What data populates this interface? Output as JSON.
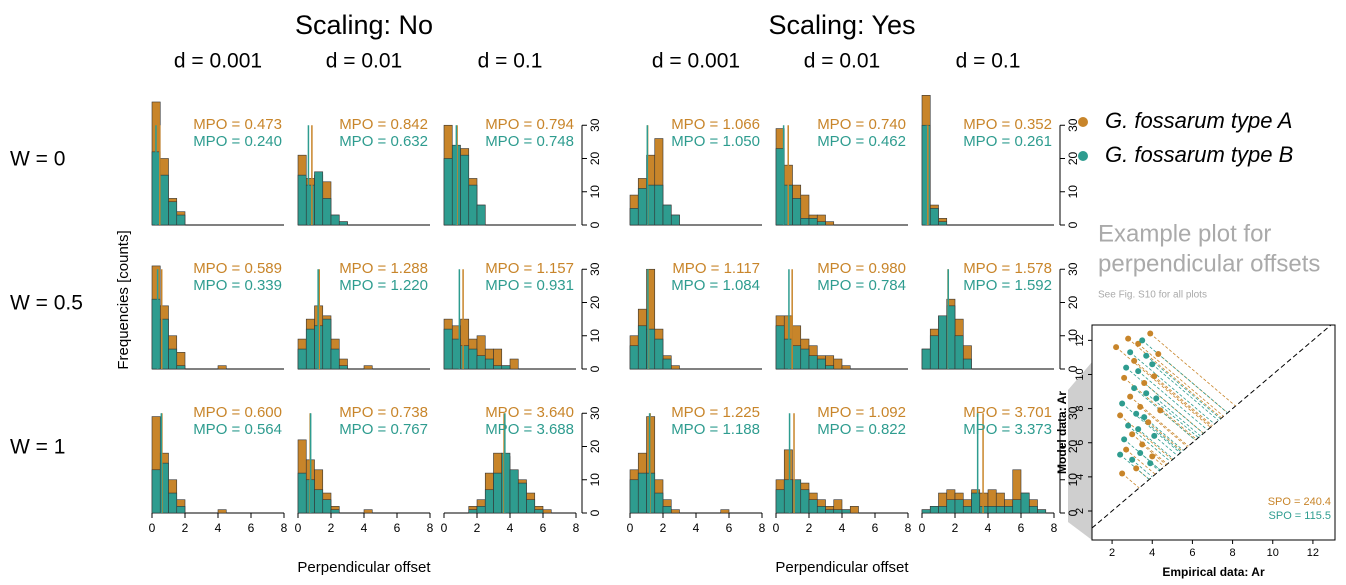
{
  "figure": {
    "groups": [
      {
        "title": "Scaling: No",
        "columns": [
          "d = 0.001",
          "d = 0.01",
          "d = 0.1"
        ],
        "xlabel": "Perpendicular offset"
      },
      {
        "title": "Scaling: Yes",
        "columns": [
          "d = 0.001",
          "d = 0.01",
          "d = 0.1"
        ],
        "xlabel": "Perpendicular offset"
      }
    ],
    "rows": [
      "W = 0",
      "W = 0.5",
      "W = 1"
    ],
    "ylabel": "Frequencies [counts]",
    "legend": [
      {
        "label": "G. fossarum type A",
        "color": "#c8852a"
      },
      {
        "label": "G. fossarum type B",
        "color": "#2e9c8f"
      }
    ],
    "example": {
      "title_lines": [
        "Example plot for",
        "perpendicular offsets"
      ],
      "note": "See Fig. S10 for all plots"
    }
  },
  "chart_data": [
    {
      "type": "histogram",
      "bins": [
        0,
        0.5,
        1,
        1.5,
        2
      ],
      "xlim": [
        0,
        8
      ],
      "ylim": [
        0,
        40
      ],
      "series": [
        {
          "values": [
            37,
            20,
            8,
            4
          ],
          "mpo": 0.473,
          "mpo_label": "MPO = 0.473"
        },
        {
          "values": [
            22,
            15,
            7,
            3
          ],
          "mpo": 0.24,
          "mpo_label": "MPO = 0.240"
        }
      ]
    },
    {
      "type": "histogram",
      "bins": [
        0,
        0.5,
        1,
        1.5,
        2,
        2.5,
        3
      ],
      "xlim": [
        0,
        8
      ],
      "ylim": [
        0,
        40
      ],
      "series": [
        {
          "values": [
            21,
            14,
            15,
            13,
            3,
            1
          ],
          "mpo": 0.842,
          "mpo_label": "MPO = 0.842"
        },
        {
          "values": [
            15,
            12,
            16,
            8,
            3,
            1
          ],
          "mpo": 0.632,
          "mpo_label": "MPO = 0.632"
        }
      ]
    },
    {
      "type": "histogram",
      "bins": [
        0,
        0.5,
        1,
        1.5,
        2,
        2.5
      ],
      "xlim": [
        0,
        8
      ],
      "ylim": [
        0,
        40
      ],
      "yticks": [
        0,
        10,
        20,
        30
      ],
      "series": [
        {
          "values": [
            30,
            22,
            23,
            14,
            6
          ],
          "mpo": 0.794,
          "mpo_label": "MPO = 0.794"
        },
        {
          "values": [
            20,
            24,
            21,
            12,
            6
          ],
          "mpo": 0.748,
          "mpo_label": "MPO = 0.748"
        }
      ]
    },
    {
      "type": "histogram",
      "bins": [
        0,
        0.5,
        1,
        1.5,
        2,
        2.5,
        3
      ],
      "xlim": [
        0,
        8
      ],
      "ylim": [
        0,
        40
      ],
      "series": [
        {
          "values": [
            9,
            14,
            21,
            26,
            6,
            3
          ],
          "mpo": 1.066,
          "mpo_label": "MPO = 1.066"
        },
        {
          "values": [
            5,
            11,
            12,
            12,
            6,
            3
          ],
          "mpo": 1.05,
          "mpo_label": "MPO = 1.050"
        }
      ]
    },
    {
      "type": "histogram",
      "bins": [
        0,
        0.5,
        1,
        1.5,
        2,
        2.5,
        3,
        3.5
      ],
      "xlim": [
        0,
        8
      ],
      "ylim": [
        0,
        40
      ],
      "series": [
        {
          "values": [
            29,
            18,
            12,
            9,
            3,
            3,
            1
          ],
          "mpo": 0.74,
          "mpo_label": "MPO = 0.740"
        },
        {
          "values": [
            23,
            12,
            8,
            2,
            2,
            1,
            0
          ],
          "mpo": 0.462,
          "mpo_label": "MPO = 0.462"
        }
      ]
    },
    {
      "type": "histogram",
      "bins": [
        0,
        0.5,
        1,
        1.5
      ],
      "xlim": [
        0,
        8
      ],
      "ylim": [
        0,
        40
      ],
      "yticks": [
        0,
        10,
        20,
        30
      ],
      "series": [
        {
          "values": [
            39,
            6,
            2
          ],
          "mpo": 0.352,
          "mpo_label": "MPO = 0.352"
        },
        {
          "values": [
            30,
            5,
            1
          ],
          "mpo": 0.261,
          "mpo_label": "MPO = 0.261"
        }
      ]
    },
    {
      "type": "histogram",
      "bins": [
        0,
        0.5,
        1,
        1.5,
        2,
        2.5,
        3,
        3.5,
        4,
        4.5
      ],
      "xlim": [
        0,
        8
      ],
      "ylim": [
        0,
        40
      ],
      "series": [
        {
          "values": [
            31,
            19,
            10,
            5,
            0,
            0,
            0,
            0,
            1
          ],
          "mpo": 0.589,
          "mpo_label": "MPO = 0.589"
        },
        {
          "values": [
            21,
            15,
            6,
            1,
            0,
            0,
            0,
            0,
            0
          ],
          "mpo": 0.339,
          "mpo_label": "MPO = 0.339"
        }
      ]
    },
    {
      "type": "histogram",
      "bins": [
        0,
        0.5,
        1,
        1.5,
        2,
        2.5,
        3,
        3.5,
        4,
        4.5
      ],
      "xlim": [
        0,
        8
      ],
      "ylim": [
        0,
        40
      ],
      "series": [
        {
          "values": [
            9,
            15,
            19,
            16,
            9,
            3,
            0,
            0,
            1
          ],
          "mpo": 1.288,
          "mpo_label": "MPO = 1.288"
        },
        {
          "values": [
            6,
            12,
            13,
            15,
            6,
            1,
            0,
            0,
            0
          ],
          "mpo": 1.22,
          "mpo_label": "MPO = 1.220"
        }
      ]
    },
    {
      "type": "histogram",
      "bins": [
        0,
        0.5,
        1,
        1.5,
        2,
        2.5,
        3,
        3.5,
        4,
        4.5
      ],
      "xlim": [
        0,
        8
      ],
      "ylim": [
        0,
        40
      ],
      "yticks": [
        0,
        10,
        20,
        30
      ],
      "series": [
        {
          "values": [
            15,
            13,
            15,
            9,
            10,
            6,
            6,
            1,
            3
          ],
          "mpo": 1.157,
          "mpo_label": "MPO = 1.157"
        },
        {
          "values": [
            12,
            9,
            7,
            6,
            4,
            3,
            1,
            1,
            0
          ],
          "mpo": 0.931,
          "mpo_label": "MPO = 0.931"
        }
      ]
    },
    {
      "type": "histogram",
      "bins": [
        0,
        0.5,
        1,
        1.5,
        2,
        2.5,
        3
      ],
      "xlim": [
        0,
        8
      ],
      "ylim": [
        0,
        40
      ],
      "series": [
        {
          "values": [
            10,
            18,
            30,
            12,
            4,
            1
          ],
          "mpo": 1.117,
          "mpo_label": "MPO = 1.117"
        },
        {
          "values": [
            7,
            13,
            12,
            9,
            3,
            0
          ],
          "mpo": 1.084,
          "mpo_label": "MPO = 1.084"
        }
      ]
    },
    {
      "type": "histogram",
      "bins": [
        0,
        0.5,
        1,
        1.5,
        2,
        2.5,
        3,
        3.5,
        4,
        4.5
      ],
      "xlim": [
        0,
        8
      ],
      "ylim": [
        0,
        40
      ],
      "series": [
        {
          "values": [
            16,
            16,
            13,
            9,
            7,
            4,
            4,
            3,
            1
          ],
          "mpo": 0.98,
          "mpo_label": "MPO = 0.980"
        },
        {
          "values": [
            13,
            9,
            7,
            6,
            4,
            3,
            1,
            0,
            0
          ],
          "mpo": 0.784,
          "mpo_label": "MPO = 0.784"
        }
      ]
    },
    {
      "type": "histogram",
      "bins": [
        0,
        0.5,
        1,
        1.5,
        2,
        2.5,
        3
      ],
      "xlim": [
        0,
        8
      ],
      "ylim": [
        0,
        40
      ],
      "yticks": [
        0,
        10,
        20,
        30
      ],
      "series": [
        {
          "values": [
            6,
            12,
            16,
            21,
            15,
            7
          ],
          "mpo": 1.578,
          "mpo_label": "MPO = 1.578"
        },
        {
          "values": [
            6,
            10,
            16,
            19,
            10,
            3
          ],
          "mpo": 1.592,
          "mpo_label": "MPO = 1.592"
        }
      ]
    },
    {
      "type": "histogram",
      "bins": [
        0,
        0.5,
        1,
        1.5,
        2,
        2.5,
        3,
        3.5,
        4,
        4.5
      ],
      "xlim": [
        0,
        8
      ],
      "ylim": [
        0,
        40
      ],
      "xticks": [
        0,
        2,
        4,
        6,
        8
      ],
      "series": [
        {
          "values": [
            29,
            18,
            10,
            4,
            0,
            0,
            0,
            0,
            1
          ],
          "mpo": 0.6,
          "mpo_label": "MPO = 0.600"
        },
        {
          "values": [
            13,
            15,
            6,
            2,
            0,
            0,
            0,
            0,
            0
          ],
          "mpo": 0.564,
          "mpo_label": "MPO = 0.564"
        }
      ]
    },
    {
      "type": "histogram",
      "bins": [
        0,
        0.5,
        1,
        1.5,
        2,
        2.5,
        3,
        3.5,
        4,
        4.5
      ],
      "xlim": [
        0,
        8
      ],
      "ylim": [
        0,
        40
      ],
      "xticks": [
        0,
        2,
        4,
        6,
        8
      ],
      "series": [
        {
          "values": [
            22,
            16,
            13,
            6,
            2,
            0,
            0,
            0,
            1
          ],
          "mpo": 0.738,
          "mpo_label": "MPO = 0.738"
        },
        {
          "values": [
            12,
            10,
            7,
            4,
            1,
            0,
            0,
            0,
            0
          ],
          "mpo": 0.767,
          "mpo_label": "MPO = 0.767"
        }
      ]
    },
    {
      "type": "histogram",
      "bins": [
        0,
        0.5,
        1,
        1.5,
        2,
        2.5,
        3,
        3.5,
        4,
        4.5,
        5,
        5.5,
        6,
        6.5
      ],
      "xlim": [
        0,
        8
      ],
      "ylim": [
        0,
        40
      ],
      "xticks": [
        0,
        2,
        4,
        6,
        8
      ],
      "yticks": [
        0,
        10,
        20,
        30
      ],
      "series": [
        {
          "values": [
            0,
            0,
            0,
            2,
            4,
            12,
            18,
            17,
            13,
            10,
            6,
            2,
            1
          ],
          "mpo": 3.64,
          "mpo_label": "MPO = 3.640"
        },
        {
          "values": [
            0,
            0,
            0,
            1,
            2,
            7,
            12,
            18,
            13,
            9,
            4,
            1,
            0
          ],
          "mpo": 3.688,
          "mpo_label": "MPO = 3.688"
        }
      ]
    },
    {
      "type": "histogram",
      "bins": [
        0,
        0.5,
        1,
        1.5,
        2,
        2.5,
        3,
        3.5,
        4,
        4.5,
        5,
        5.5,
        6
      ],
      "xlim": [
        0,
        8
      ],
      "ylim": [
        0,
        40
      ],
      "xticks": [
        0,
        2,
        4,
        6,
        8
      ],
      "series": [
        {
          "values": [
            13,
            18,
            29,
            10,
            4,
            1,
            0,
            0,
            0,
            0,
            0,
            1
          ],
          "mpo": 1.225,
          "mpo_label": "MPO = 1.225"
        },
        {
          "values": [
            10,
            12,
            12,
            6,
            2,
            0,
            0,
            0,
            0,
            0,
            0,
            0
          ],
          "mpo": 1.188,
          "mpo_label": "MPO = 1.188"
        }
      ]
    },
    {
      "type": "histogram",
      "bins": [
        0,
        0.5,
        1,
        1.5,
        2,
        2.5,
        3,
        3.5,
        4,
        4.5,
        5
      ],
      "xlim": [
        0,
        8
      ],
      "ylim": [
        0,
        40
      ],
      "xticks": [
        0,
        2,
        4,
        6,
        8
      ],
      "series": [
        {
          "values": [
            10,
            19,
            10,
            9,
            6,
            4,
            2,
            4,
            1,
            2
          ],
          "mpo": 1.092,
          "mpo_label": "MPO = 1.092"
        },
        {
          "values": [
            7,
            10,
            10,
            7,
            4,
            2,
            1,
            1,
            1,
            0
          ],
          "mpo": 0.822,
          "mpo_label": "MPO = 0.822"
        }
      ]
    },
    {
      "type": "histogram",
      "bins": [
        0,
        0.5,
        1,
        1.5,
        2,
        2.5,
        3,
        3.5,
        4,
        4.5,
        5,
        5.5,
        6,
        6.5,
        7,
        7.5
      ],
      "xlim": [
        0,
        8
      ],
      "ylim": [
        0,
        40
      ],
      "xticks": [
        0,
        2,
        4,
        6,
        8
      ],
      "yticks": [
        0,
        10,
        20,
        30
      ],
      "series": [
        {
          "values": [
            1,
            2,
            6,
            7,
            6,
            4,
            7,
            6,
            7,
            6,
            4,
            13,
            6,
            4,
            1
          ],
          "mpo": 3.701,
          "mpo_label": "MPO = 3.701"
        },
        {
          "values": [
            1,
            2,
            2,
            4,
            4,
            2,
            6,
            2,
            2,
            2,
            2,
            4,
            6,
            2,
            1
          ],
          "mpo": 3.373,
          "mpo_label": "MPO = 3.373"
        }
      ]
    },
    {
      "type": "scatter",
      "xlabel": "Empirical data: Ar",
      "ylabel": "Model data: Ar",
      "xlim": [
        1,
        13.1
      ],
      "ylim": [
        0.3,
        12.9
      ],
      "xticks": [
        2,
        4,
        6,
        8,
        10,
        12
      ],
      "yticks": [
        2,
        4,
        6,
        8,
        10,
        12
      ],
      "series": [
        {
          "x": [
            2.2,
            2.8,
            3.3,
            3.9,
            4.3,
            3.1,
            2.6,
            3.6,
            4.1,
            2.9,
            3.4,
            2.4,
            3.8,
            4.4,
            3.0,
            2.7,
            3.5,
            4.0,
            3.2,
            2.5
          ],
          "values": [
            11.6,
            12.1,
            11.8,
            12.4,
            11.2,
            10.8,
            9.8,
            9.5,
            9.9,
            8.7,
            8.1,
            7.6,
            7.2,
            7.9,
            6.5,
            5.6,
            5.9,
            5.2,
            4.5,
            4.2
          ],
          "spo": 240.4,
          "spo_label": "SPO = 240.4"
        },
        {
          "x": [
            2.9,
            3.5,
            4.0,
            3.3,
            2.7,
            3.7,
            3.1,
            2.5,
            4.2,
            3.6,
            2.8,
            3.3,
            4.1,
            2.6,
            3.4,
            3.0,
            3.9,
            2.4,
            3.7,
            3.2
          ],
          "values": [
            11.3,
            12.0,
            10.6,
            10.2,
            10.4,
            8.9,
            9.2,
            8.3,
            8.6,
            7.5,
            7.0,
            6.8,
            6.4,
            6.2,
            5.4,
            5.0,
            4.8,
            5.3,
            11.1,
            7.7
          ],
          "spo": 115.5,
          "spo_label": "SPO = 115.5"
        }
      ]
    }
  ]
}
